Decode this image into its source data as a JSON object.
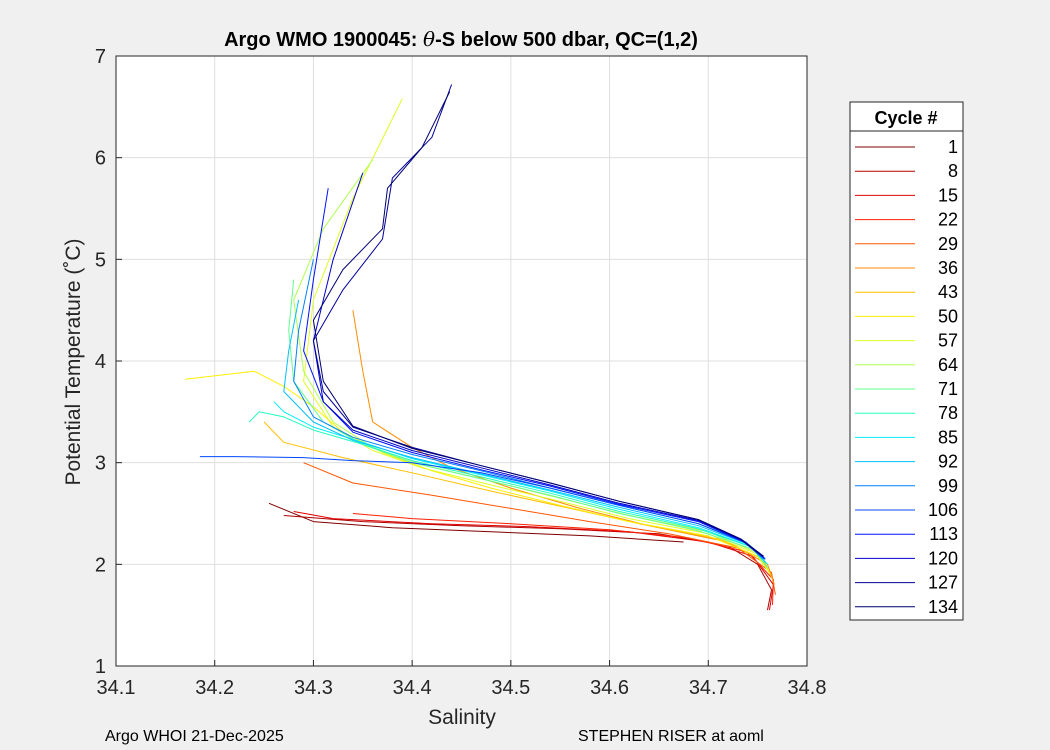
{
  "chart_data": {
    "type": "line",
    "title": "Argo WMO 1900045: θ-S below 500 dbar,  QC=(1,2)",
    "title_prefix": "Argo WMO 1900045: ",
    "title_theta": "θ",
    "title_suffix": "-S below 500 dbar,  QC=(1,2)",
    "xlabel": "Salinity",
    "ylabel": "Potential Temperature (˚C)",
    "xlim": [
      34.1,
      34.8
    ],
    "ylim": [
      1,
      7
    ],
    "xticks": [
      34.1,
      34.2,
      34.3,
      34.4,
      34.5,
      34.6,
      34.7,
      34.8
    ],
    "xtick_labels": [
      "34.1",
      "34.2",
      "34.3",
      "34.4",
      "34.5",
      "34.6",
      "34.7",
      "34.8"
    ],
    "yticks": [
      1,
      2,
      3,
      4,
      5,
      6,
      7
    ],
    "ytick_labels": [
      "1",
      "2",
      "3",
      "4",
      "5",
      "6",
      "7"
    ],
    "grid": true,
    "legend": {
      "title": "Cycle #",
      "location": "right",
      "entries": [
        "1",
        "8",
        "15",
        "22",
        "29",
        "36",
        "43",
        "50",
        "57",
        "64",
        "71",
        "78",
        "85",
        "92",
        "99",
        "106",
        "113",
        "120",
        "127",
        "134"
      ],
      "colors": [
        "#7f0000",
        "#b00000",
        "#e00000",
        "#ff2000",
        "#ff5500",
        "#ff8c00",
        "#ffbf00",
        "#ffef00",
        "#e0ff20",
        "#b0ff50",
        "#60ff90",
        "#20ffc0",
        "#00eeff",
        "#00c0ff",
        "#0080ff",
        "#0048ff",
        "#0010ff",
        "#0000c8",
        "#00009a",
        "#000070"
      ]
    },
    "series": [
      {
        "name": "1",
        "x": [
          34.675,
          34.58,
          34.48,
          34.38,
          34.3,
          34.255
        ],
        "y": [
          2.22,
          2.28,
          2.32,
          2.36,
          2.42,
          2.6
        ]
      },
      {
        "name": "8",
        "x": [
          34.76,
          34.764,
          34.75,
          34.72,
          34.65,
          34.55,
          34.45,
          34.35,
          34.27
        ],
        "y": [
          1.55,
          1.75,
          2.0,
          2.18,
          2.3,
          2.35,
          2.38,
          2.42,
          2.48
        ]
      },
      {
        "name": "15",
        "x": [
          34.762,
          34.766,
          34.745,
          34.7,
          34.62,
          34.52,
          34.42,
          34.32,
          34.28
        ],
        "y": [
          1.55,
          1.8,
          2.08,
          2.22,
          2.32,
          2.37,
          2.4,
          2.45,
          2.52
        ]
      },
      {
        "name": "22",
        "x": [
          34.765,
          34.766,
          34.74,
          34.68,
          34.6,
          34.5,
          34.4,
          34.34
        ],
        "y": [
          1.6,
          1.85,
          2.12,
          2.26,
          2.34,
          2.4,
          2.45,
          2.5
        ]
      },
      {
        "name": "29",
        "x": [
          34.768,
          34.764,
          34.73,
          34.66,
          34.58,
          34.5,
          34.42,
          34.34,
          34.29
        ],
        "y": [
          1.7,
          1.92,
          2.16,
          2.3,
          2.42,
          2.55,
          2.68,
          2.8,
          3.0
        ]
      },
      {
        "name": "36",
        "x": [
          34.767,
          34.76,
          34.72,
          34.64,
          34.57,
          34.5,
          34.44,
          34.4,
          34.36,
          34.35,
          34.34
        ],
        "y": [
          1.8,
          2.0,
          2.22,
          2.38,
          2.55,
          2.75,
          2.95,
          3.15,
          3.4,
          3.9,
          4.5
        ]
      },
      {
        "name": "43",
        "x": [
          34.765,
          34.756,
          34.71,
          34.63,
          34.56,
          34.48,
          34.4,
          34.33,
          34.27,
          34.25
        ],
        "y": [
          1.85,
          2.05,
          2.25,
          2.4,
          2.55,
          2.72,
          2.9,
          3.05,
          3.2,
          3.4
        ]
      },
      {
        "name": "50",
        "x": [
          34.763,
          34.75,
          34.7,
          34.62,
          34.55,
          34.48,
          34.42,
          34.37,
          34.33,
          34.3,
          34.27,
          34.24,
          34.17
        ],
        "y": [
          1.9,
          2.08,
          2.28,
          2.42,
          2.58,
          2.75,
          2.92,
          3.1,
          3.3,
          3.55,
          3.75,
          3.9,
          3.82
        ]
      },
      {
        "name": "57",
        "x": [
          34.762,
          34.75,
          34.7,
          34.62,
          34.55,
          34.48,
          34.41,
          34.36,
          34.32,
          34.29,
          34.3,
          34.34,
          34.39
        ],
        "y": [
          1.92,
          2.1,
          2.3,
          2.45,
          2.62,
          2.78,
          2.95,
          3.12,
          3.35,
          3.8,
          4.6,
          5.6,
          6.58
        ]
      },
      {
        "name": "64",
        "x": [
          34.761,
          34.748,
          34.7,
          34.62,
          34.55,
          34.48,
          34.41,
          34.36,
          34.32,
          34.29,
          34.28,
          34.31,
          34.36
        ],
        "y": [
          1.95,
          2.12,
          2.32,
          2.48,
          2.65,
          2.82,
          2.98,
          3.15,
          3.4,
          3.9,
          4.6,
          5.3,
          5.98
        ]
      },
      {
        "name": "71",
        "x": [
          34.76,
          34.745,
          34.69,
          34.61,
          34.54,
          34.47,
          34.4,
          34.35,
          34.31,
          34.28,
          34.275,
          34.28
        ],
        "y": [
          1.97,
          2.15,
          2.33,
          2.5,
          2.68,
          2.84,
          3.0,
          3.18,
          3.4,
          3.8,
          4.3,
          4.8
        ]
      },
      {
        "name": "78",
        "x": [
          34.76,
          34.744,
          34.69,
          34.61,
          34.54,
          34.47,
          34.4,
          34.35,
          34.3,
          34.27,
          34.245,
          34.235
        ],
        "y": [
          2.0,
          2.17,
          2.35,
          2.52,
          2.7,
          2.86,
          3.02,
          3.18,
          3.32,
          3.45,
          3.5,
          3.4
        ]
      },
      {
        "name": "85",
        "x": [
          34.76,
          34.742,
          34.69,
          34.61,
          34.54,
          34.47,
          34.4,
          34.35,
          34.3,
          34.27,
          34.26
        ],
        "y": [
          2.0,
          2.18,
          2.36,
          2.54,
          2.72,
          2.88,
          3.04,
          3.2,
          3.35,
          3.5,
          3.6
        ]
      },
      {
        "name": "92",
        "x": [
          34.758,
          34.74,
          34.69,
          34.61,
          34.54,
          34.47,
          34.4,
          34.34,
          34.3,
          34.27,
          34.275,
          34.285
        ],
        "y": [
          2.02,
          2.2,
          2.38,
          2.56,
          2.73,
          2.89,
          3.05,
          3.22,
          3.4,
          3.7,
          4.1,
          4.6
        ]
      },
      {
        "name": "99",
        "x": [
          34.758,
          34.738,
          34.69,
          34.61,
          34.54,
          34.47,
          34.4,
          34.34,
          34.3,
          34.28,
          34.285,
          34.3
        ],
        "y": [
          2.05,
          2.22,
          2.4,
          2.58,
          2.75,
          2.92,
          3.08,
          3.25,
          3.45,
          3.8,
          4.3,
          5.0
        ]
      },
      {
        "name": "106",
        "x": [
          34.757,
          34.736,
          34.69,
          34.61,
          34.54,
          34.47,
          34.4,
          34.34,
          34.29,
          34.22,
          34.185
        ],
        "y": [
          2.05,
          2.22,
          2.4,
          2.58,
          2.75,
          2.9,
          3.0,
          3.02,
          3.05,
          3.06,
          3.06
        ]
      },
      {
        "name": "113",
        "x": [
          34.757,
          34.735,
          34.69,
          34.61,
          34.54,
          34.47,
          34.4,
          34.34,
          34.31,
          34.29,
          34.3,
          34.315
        ],
        "y": [
          2.06,
          2.23,
          2.42,
          2.59,
          2.77,
          2.93,
          3.1,
          3.3,
          3.6,
          4.1,
          4.8,
          5.7
        ]
      },
      {
        "name": "120",
        "x": [
          34.756,
          34.734,
          34.69,
          34.61,
          34.54,
          34.47,
          34.4,
          34.34,
          34.31,
          34.3,
          34.32,
          34.35
        ],
        "y": [
          2.07,
          2.24,
          2.43,
          2.6,
          2.78,
          2.95,
          3.12,
          3.32,
          3.6,
          4.2,
          5.0,
          5.85
        ]
      },
      {
        "name": "127",
        "x": [
          34.756,
          34.733,
          34.69,
          34.61,
          34.54,
          34.47,
          34.4,
          34.34,
          34.31,
          34.3,
          34.33,
          34.37,
          34.38,
          34.42,
          34.44
        ],
        "y": [
          2.08,
          2.25,
          2.44,
          2.62,
          2.8,
          2.97,
          3.15,
          3.35,
          3.7,
          4.2,
          4.7,
          5.2,
          5.8,
          6.2,
          6.72
        ]
      },
      {
        "name": "134",
        "x": [
          34.755,
          34.732,
          34.69,
          34.61,
          34.54,
          34.47,
          34.4,
          34.34,
          34.31,
          34.3,
          34.33,
          34.37,
          34.375,
          34.41,
          34.438
        ],
        "y": [
          2.08,
          2.25,
          2.44,
          2.62,
          2.8,
          2.97,
          3.14,
          3.36,
          3.8,
          4.4,
          4.9,
          5.3,
          5.7,
          6.1,
          6.65
        ]
      }
    ]
  },
  "footer": {
    "left": "Argo WHOI 21-Dec-2025",
    "right": "STEPHEN RISER at aoml"
  }
}
